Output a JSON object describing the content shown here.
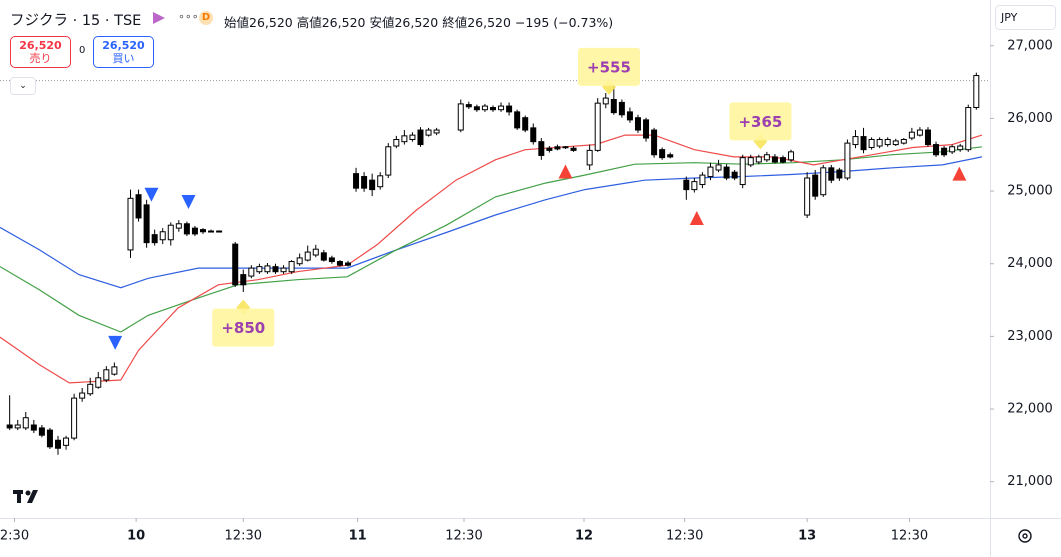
{
  "chart_data": {
    "type": "candlestick",
    "header": {
      "symbol": "フジクラ · 15 · TSE",
      "ohlc": [
        "始値26,520",
        "高値26,520",
        "安値26,520",
        "終値26,520"
      ],
      "change": "−195 (−0.73%)",
      "sell": {
        "price": "26,520",
        "label": "売り"
      },
      "spread": "0",
      "buy": {
        "price": "26,520",
        "label": "買い"
      }
    },
    "currency": "JPY",
    "last_price": 26520,
    "ylim": [
      20500,
      27630
    ],
    "yticks": [
      {
        "value": 21000,
        "label": "21,000"
      },
      {
        "value": 22000,
        "label": "22,000"
      },
      {
        "value": 23000,
        "label": "23,000"
      },
      {
        "value": 24000,
        "label": "24,000"
      },
      {
        "value": 25000,
        "label": "25,000"
      },
      {
        "value": 26000,
        "label": "26,000"
      },
      {
        "value": 27000,
        "label": "27,000"
      }
    ],
    "xlim": [
      -1.2,
      121.7
    ],
    "xticks": [
      {
        "value": 0.6,
        "label": "2:30"
      },
      {
        "value": 15.7,
        "label": "10",
        "major": true
      },
      {
        "value": 29,
        "label": "12:30"
      },
      {
        "value": 43.2,
        "label": "11",
        "major": true
      },
      {
        "value": 56.4,
        "label": "12:30"
      },
      {
        "value": 71.3,
        "label": "12",
        "major": true
      },
      {
        "value": 83.8,
        "label": "12:30"
      },
      {
        "value": 99,
        "label": "13",
        "major": true
      },
      {
        "value": 111.7,
        "label": "12:30"
      }
    ],
    "x": [
      0,
      1,
      2,
      3,
      4,
      5,
      6,
      7,
      8,
      9,
      10,
      11,
      12,
      13,
      15,
      16,
      17,
      18,
      19,
      20,
      21,
      22,
      23,
      24,
      25,
      26,
      28,
      29,
      30,
      31,
      32,
      33,
      34,
      35,
      36,
      37,
      38,
      39,
      40,
      41,
      42,
      43,
      44,
      45,
      46,
      47,
      48,
      49,
      50,
      51,
      52,
      53,
      56,
      57,
      58,
      59,
      60,
      61,
      62,
      63,
      64,
      65,
      66,
      67,
      68,
      69,
      70,
      72,
      73,
      74,
      75,
      76,
      77,
      78,
      79,
      80,
      81,
      82,
      84,
      85,
      86,
      87,
      88,
      89,
      90,
      91,
      92,
      93,
      94,
      95,
      96,
      97,
      99,
      100,
      101,
      102,
      103,
      104,
      105,
      106,
      107,
      108,
      109,
      110,
      111,
      112,
      113,
      114,
      115,
      116,
      117,
      118,
      119,
      120
    ],
    "open": [
      21780,
      21740,
      21740,
      21780,
      21740,
      21710,
      21570,
      21500,
      21600,
      22150,
      22210,
      22300,
      22400,
      22480,
      24190,
      24950,
      24810,
      24400,
      24330,
      24330,
      24490,
      24550,
      24490,
      24470,
      24450,
      24450,
      24270,
      23850,
      23830,
      23890,
      23890,
      23960,
      23890,
      23890,
      24000,
      24050,
      24120,
      24150,
      24080,
      24030,
      24010,
      25240,
      25200,
      25150,
      25060,
      25220,
      25620,
      25680,
      25710,
      25840,
      25770,
      25800,
      25840,
      26190,
      26160,
      26120,
      26150,
      26120,
      26170,
      26090,
      26010,
      25870,
      25680,
      25590,
      25610,
      25610,
      25590,
      25360,
      25560,
      26200,
      26260,
      26220,
      26090,
      26010,
      25980,
      25840,
      25570,
      25500,
      25150,
      25020,
      25090,
      25200,
      25290,
      25330,
      25260,
      25090,
      25360,
      25400,
      25430,
      25470,
      25460,
      25430,
      24670,
      25220,
      24950,
      25320,
      25290,
      25180,
      25640,
      25750,
      25600,
      25620,
      25640,
      25640,
      25660,
      25730,
      25770,
      25840,
      25640,
      25590,
      25540,
      25570,
      25570,
      26150
    ],
    "high": [
      22190,
      21850,
      21960,
      21850,
      21780,
      21740,
      21630,
      21630,
      22210,
      22290,
      22430,
      22510,
      22590,
      22640,
      25020,
      25020,
      24880,
      24470,
      24490,
      24570,
      24600,
      24580,
      24520,
      24490,
      24470,
      24460,
      24300,
      23920,
      23980,
      24000,
      24010,
      24000,
      23980,
      24050,
      24140,
      24250,
      24260,
      24190,
      24110,
      24050,
      24040,
      25320,
      25260,
      25240,
      25260,
      25660,
      25760,
      25840,
      25810,
      25880,
      25870,
      25870,
      26260,
      26230,
      26190,
      26200,
      26180,
      26220,
      26220,
      26120,
      26040,
      25930,
      25730,
      25620,
      25640,
      25620,
      25620,
      25640,
      26280,
      26350,
      26460,
      26260,
      26150,
      26050,
      26010,
      25870,
      25600,
      25530,
      25200,
      25180,
      25260,
      25390,
      25430,
      25370,
      25290,
      25500,
      25500,
      25500,
      25540,
      25510,
      25490,
      25570,
      25260,
      25290,
      25360,
      25360,
      25320,
      25710,
      25840,
      25870,
      25740,
      25740,
      25740,
      25720,
      25730,
      25870,
      25880,
      25880,
      25680,
      25620,
      25640,
      25650,
      26190,
      26630
    ],
    "low": [
      21710,
      21710,
      21710,
      21670,
      21610,
      21450,
      21370,
      21440,
      21570,
      22100,
      22180,
      22280,
      22370,
      22460,
      24080,
      24580,
      24220,
      24250,
      24270,
      24250,
      24440,
      24380,
      24380,
      24410,
      24430,
      24430,
      23680,
      23610,
      23800,
      23860,
      23860,
      23860,
      23860,
      23860,
      23970,
      24030,
      24090,
      24030,
      24000,
      23960,
      23960,
      24990,
      24990,
      24930,
      25020,
      25180,
      25590,
      25640,
      25680,
      25610,
      25750,
      25770,
      25810,
      26130,
      26090,
      26090,
      26090,
      26090,
      26040,
      25840,
      25810,
      25640,
      25430,
      25530,
      25560,
      25580,
      25540,
      25290,
      25540,
      26140,
      26050,
      26010,
      25940,
      25800,
      25680,
      25460,
      25430,
      25450,
      24880,
      24980,
      25040,
      25150,
      25260,
      25150,
      25150,
      25040,
      25330,
      25370,
      25400,
      25380,
      25380,
      25400,
      24630,
      24880,
      24920,
      25110,
      25140,
      25150,
      25590,
      25520,
      25570,
      25590,
      25610,
      25620,
      25640,
      25700,
      25750,
      25610,
      25470,
      25470,
      25510,
      25540,
      25540,
      26120
    ],
    "close": [
      21740,
      21780,
      21880,
      21710,
      21640,
      21480,
      21460,
      21600,
      22150,
      22220,
      22340,
      22430,
      22540,
      22580,
      24900,
      24630,
      24290,
      24290,
      24440,
      24530,
      24550,
      24410,
      24410,
      24440,
      24450,
      24440,
      23710,
      23710,
      23940,
      23960,
      23970,
      23890,
      23940,
      24030,
      24080,
      24160,
      24200,
      24050,
      24030,
      23980,
      23980,
      25040,
      25040,
      25020,
      25210,
      25610,
      25710,
      25760,
      25770,
      25640,
      25840,
      25840,
      26200,
      26160,
      26120,
      26170,
      26120,
      26170,
      26090,
      25870,
      25840,
      25680,
      25490,
      25560,
      25580,
      25600,
      25560,
      25560,
      26210,
      26280,
      26080,
      26050,
      25980,
      25840,
      25730,
      25500,
      25460,
      25470,
      25020,
      25130,
      25220,
      25330,
      25360,
      25180,
      25180,
      25460,
      25460,
      25470,
      25500,
      25400,
      25400,
      25540,
      25180,
      24930,
      25320,
      25150,
      25180,
      25660,
      25750,
      25570,
      25710,
      25710,
      25710,
      25690,
      25710,
      25810,
      25840,
      25640,
      25500,
      25500,
      25610,
      25620,
      26150,
      26590
    ],
    "series": [
      {
        "color": "#2f5fe0",
        "x": [
          -1.2,
          3.7,
          8.6,
          13.8,
          17.2,
          23.4,
          29.6,
          35.7,
          41.9,
          48.0,
          54.2,
          60.3,
          66.5,
          71.4,
          78.8,
          85.0,
          91.1,
          97.3,
          103.4,
          109.6,
          115.8,
          120.7
        ],
        "values": [
          24500,
          24190,
          23850,
          23670,
          23800,
          23940,
          23940,
          23940,
          23940,
          24190,
          24430,
          24670,
          24880,
          25020,
          25150,
          25180,
          25200,
          25230,
          25270,
          25320,
          25360,
          25470
        ]
      },
      {
        "color": "#43a047",
        "x": [
          -1.2,
          3.7,
          8.6,
          13.8,
          17.2,
          23.4,
          28.3,
          35.7,
          41.9,
          48.0,
          54.2,
          60.3,
          66.5,
          71.4,
          77.6,
          85.0,
          91.1,
          97.3,
          103.4,
          109.6,
          115.8,
          120.7
        ],
        "values": [
          23960,
          23640,
          23290,
          23060,
          23290,
          23530,
          23710,
          23780,
          23820,
          24190,
          24530,
          24920,
          25110,
          25220,
          25370,
          25390,
          25370,
          25390,
          25430,
          25500,
          25540,
          25610
        ]
      },
      {
        "color": "#ef4a4a",
        "x": [
          -1.2,
          3.7,
          7.4,
          13.8,
          16.0,
          20.9,
          25.9,
          30.8,
          35.7,
          41.9,
          45.6,
          50.5,
          55.4,
          60.3,
          64.0,
          69.0,
          72.7,
          76.4,
          80.0,
          85.0,
          89.9,
          94.8,
          99.8,
          103.4,
          107.1,
          112.1,
          117.0,
          120.7
        ],
        "values": [
          22990,
          22610,
          22360,
          22400,
          22810,
          23390,
          23710,
          23780,
          23890,
          23980,
          24260,
          24740,
          25150,
          25430,
          25570,
          25610,
          25640,
          25770,
          25770,
          25570,
          25470,
          25470,
          25360,
          25430,
          25500,
          25600,
          25640,
          25770
        ]
      }
    ],
    "signals": [
      {
        "direction": "down",
        "color": "#2962ff",
        "x": [
          17.6,
          22.2,
          13.1
        ],
        "y": [
          24950,
          24850,
          22910
        ]
      },
      {
        "direction": "up",
        "color": "#f44336",
        "x": [
          69.0,
          85.3,
          117.9
        ],
        "y": [
          25270,
          24630,
          25240
        ]
      }
    ],
    "annotations": [
      {
        "text": "+850",
        "x": 29,
        "y": 23120,
        "pointer": "up"
      },
      {
        "text": "+555",
        "x": 74.4,
        "y": 26710,
        "pointer": "down"
      },
      {
        "text": "+365",
        "x": 93.2,
        "y": 25960,
        "pointer": "down"
      }
    ]
  }
}
